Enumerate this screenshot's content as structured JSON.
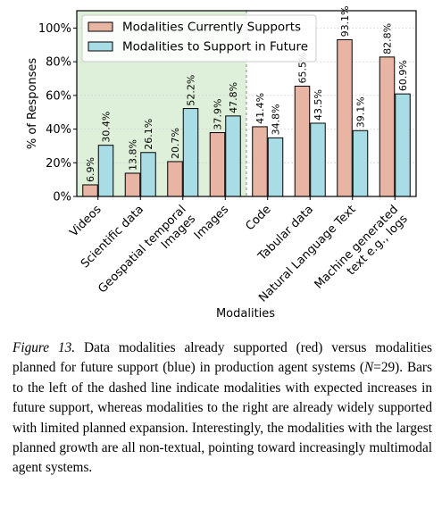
{
  "chart_data": {
    "type": "bar",
    "xlabel": "Modalities",
    "ylabel": "% of Responses",
    "ylim": [
      0,
      100
    ],
    "yticks": [
      "0%",
      "20%",
      "40%",
      "60%",
      "80%",
      "100%"
    ],
    "grid": true,
    "legend_position": "top-left",
    "categories": [
      [
        "Videos"
      ],
      [
        "Scientific data"
      ],
      [
        "Geospatial temporal",
        "Images"
      ],
      [
        "Images"
      ],
      [
        "Code"
      ],
      [
        "Tabular data"
      ],
      [
        "Natural Language Text"
      ],
      [
        "Machine generated",
        "text e.g., logs"
      ]
    ],
    "series": [
      {
        "name": "Modalities Currently Supports",
        "color": "#e8b4a4",
        "values": [
          6.9,
          13.8,
          20.7,
          37.9,
          41.4,
          65.5,
          93.1,
          82.8
        ],
        "labels": [
          "6.9%",
          "13.8%",
          "20.7%",
          "37.9%",
          "41.4%",
          "65.5%",
          "93.1%",
          "82.8%"
        ]
      },
      {
        "name": "Modalities to Support in Future",
        "color": "#a8dde6",
        "values": [
          30.4,
          26.1,
          52.2,
          47.8,
          34.8,
          43.5,
          39.1,
          60.9
        ],
        "labels": [
          "30.4%",
          "26.1%",
          "52.2%",
          "47.8%",
          "34.8%",
          "43.5%",
          "39.1%",
          "60.9%"
        ]
      }
    ],
    "shaded_region": {
      "categories_from": 0,
      "categories_to": 3,
      "color": "#dff0da"
    },
    "divider": {
      "after_category": 3,
      "style": "dashed"
    }
  },
  "caption": {
    "label": "Figure 13.",
    "text_before_n": " Data modalities already supported (red) versus modalities planned for future support (blue) in production agent systems (",
    "n_symbol": "N",
    "n_value": "=29",
    "text_after_n": ").  Bars to the left of the dashed line indicate modalities with expected increases in future support, whereas modalities to the right are already widely supported with limited planned expansion. Interestingly, the modalities with the largest planned growth are all non-textual, pointing toward increasingly multimodal agent systems."
  }
}
